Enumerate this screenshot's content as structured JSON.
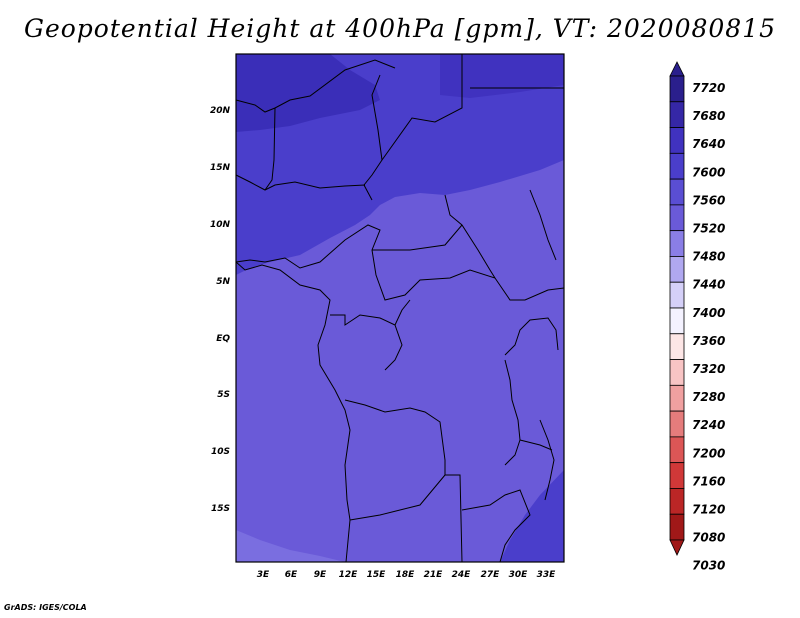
{
  "title": "Geopotential Height at 400hPa [gpm], VT: 2020080815",
  "footer": "GrADS: IGES/COLA",
  "map": {
    "lat_labels": [
      "20N",
      "15N",
      "10N",
      "5N",
      "EQ",
      "5S",
      "10S",
      "15S"
    ],
    "lon_labels": [
      "3E",
      "6E",
      "9E",
      "12E",
      "15E",
      "18E",
      "21E",
      "24E",
      "27E",
      "30E",
      "33E"
    ],
    "fill_colors": {
      "base": "#6a5ad8",
      "level_7600": "#4a3ecb",
      "level_7640": "#3a2eb8",
      "light_patch": "#7a6ee0"
    }
  },
  "colorbar": {
    "labels": [
      "7720",
      "7680",
      "7640",
      "7600",
      "7560",
      "7520",
      "7480",
      "7440",
      "7400",
      "7360",
      "7320",
      "7280",
      "7240",
      "7200",
      "7160",
      "7120",
      "7080",
      "7030"
    ],
    "colors": [
      "#2a1f8c",
      "#3527a6",
      "#4032bf",
      "#4a3ecb",
      "#5a4ed3",
      "#6a5ad8",
      "#8a7ee6",
      "#b0a8f0",
      "#d5d0f8",
      "#f4f2ff",
      "#fde6e6",
      "#f8c4c4",
      "#f0a0a0",
      "#e57c7c",
      "#dc5656",
      "#d03838",
      "#bb2626",
      "#a01818"
    ]
  }
}
